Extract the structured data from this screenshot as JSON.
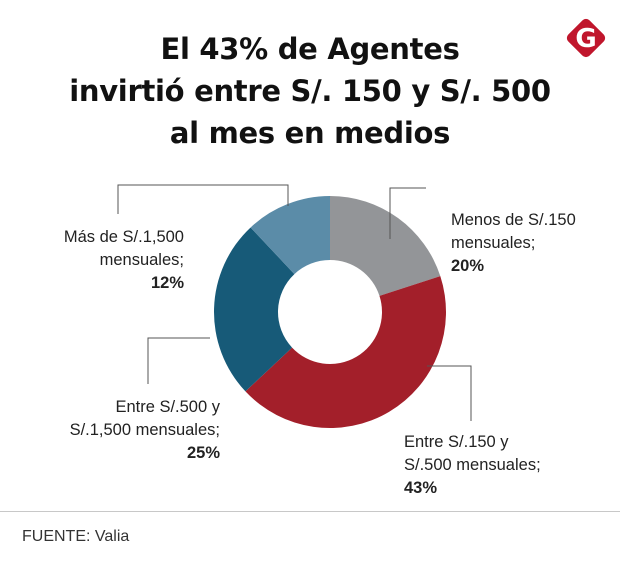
{
  "title": {
    "line1": "El 43% de Agentes",
    "line2": "invirtió entre S/. 150 y S/. 500",
    "line3": "al mes en medios"
  },
  "logo": {
    "letter": "G",
    "color": "#c0162c"
  },
  "chart_data": {
    "type": "pie",
    "donut": true,
    "title": "El 43% de Agentes invirtió entre S/. 150 y S/. 500 al mes en medios",
    "unit": "%",
    "start": "12 o'clock, clockwise",
    "slices": [
      {
        "label_lines": [
          "Menos de S/.150",
          "mensuales;"
        ],
        "value": 20,
        "value_label": "20%",
        "color": "#939598"
      },
      {
        "label_lines": [
          "Entre S/.150 y",
          "S/.500 mensuales;"
        ],
        "value": 43,
        "value_label": "43%",
        "color": "#a31f2a"
      },
      {
        "label_lines": [
          "Entre S/.500 y",
          "S/.1,500 mensuales;"
        ],
        "value": 25,
        "value_label": "25%",
        "color": "#175a78"
      },
      {
        "label_lines": [
          "Más de S/.1,500",
          "mensuales;"
        ],
        "value": 12,
        "value_label": "12%",
        "color": "#5b8ca8"
      }
    ]
  },
  "source": "FUENTE: Valia"
}
